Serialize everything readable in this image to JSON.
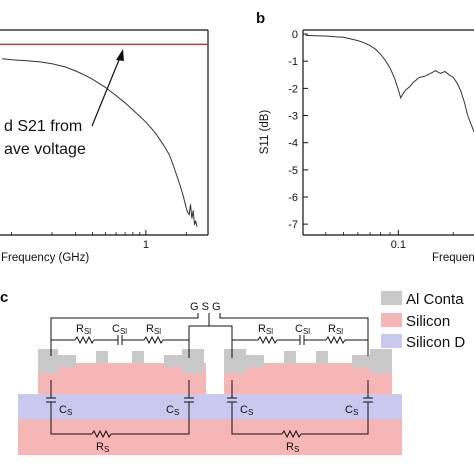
{
  "figure": {
    "panel_b": "b",
    "panel_c": "c"
  },
  "annotation": {
    "line1": "d S21 from",
    "line2": "ave voltage"
  },
  "chart_data": [
    {
      "type": "line",
      "panel": "a",
      "xlabel": "Frequency (GHz)",
      "xscale": "log",
      "x_ticks": [
        {
          "value": 1,
          "label": "1"
        }
      ],
      "xlim": [
        0.082,
        2.9
      ],
      "ylim": [
        0,
        1
      ],
      "grid": false,
      "series": [
        {
          "color": "#c0392b",
          "x": [
            0.08,
            2.9
          ],
          "y": [
            0.93,
            0.93
          ]
        },
        {
          "color": "#333333",
          "x": [
            0.085,
            0.1,
            0.13,
            0.16,
            0.2,
            0.25,
            0.3,
            0.35,
            0.4,
            0.5,
            0.6,
            0.7,
            0.8,
            0.9,
            1.0,
            1.1,
            1.2,
            1.35,
            1.5,
            1.6,
            1.7,
            1.8,
            1.9,
            2.0,
            2.05,
            2.1,
            2.15,
            2.2,
            2.25,
            2.3,
            2.35,
            2.4
          ],
          "y": [
            0.86,
            0.855,
            0.85,
            0.845,
            0.835,
            0.82,
            0.8,
            0.78,
            0.76,
            0.72,
            0.68,
            0.645,
            0.61,
            0.58,
            0.55,
            0.52,
            0.49,
            0.44,
            0.39,
            0.34,
            0.29,
            0.24,
            0.19,
            0.13,
            0.11,
            0.1,
            0.15,
            0.08,
            0.12,
            0.05,
            0.07,
            0.04
          ]
        }
      ]
    },
    {
      "type": "line",
      "panel": "b",
      "xlabel": "Frequency",
      "ylabel": "S11 (dB)",
      "xscale": "log",
      "x_ticks": [
        {
          "value": 0.1,
          "label": "0.1"
        }
      ],
      "y_ticks": [
        0,
        -1,
        -2,
        -3,
        -4,
        -5,
        -6,
        -7
      ],
      "y_tick_labels": [
        "0",
        "-1",
        "-2",
        "-3",
        "-4",
        "-5",
        "-6",
        "-7"
      ],
      "xlim": [
        0.03,
        0.26
      ],
      "ylim": [
        -7.4,
        0.15
      ],
      "grid": false,
      "series": [
        {
          "color": "#333333",
          "x": [
            0.031,
            0.035,
            0.04,
            0.045,
            0.05,
            0.055,
            0.06,
            0.065,
            0.07,
            0.075,
            0.08,
            0.085,
            0.09,
            0.095,
            0.1,
            0.103,
            0.106,
            0.11,
            0.115,
            0.12,
            0.13,
            0.14,
            0.15,
            0.16,
            0.17,
            0.18,
            0.19,
            0.2,
            0.21,
            0.22,
            0.23,
            0.24,
            0.26
          ],
          "y": [
            -0.05,
            -0.06,
            -0.07,
            -0.1,
            -0.12,
            -0.18,
            -0.24,
            -0.32,
            -0.42,
            -0.56,
            -0.75,
            -0.98,
            -1.25,
            -1.6,
            -2.05,
            -2.35,
            -2.2,
            -2.05,
            -1.95,
            -1.8,
            -1.6,
            -1.55,
            -1.45,
            -1.35,
            -1.45,
            -1.38,
            -1.5,
            -1.6,
            -1.8,
            -2.1,
            -2.5,
            -3.0,
            -3.6
          ]
        }
      ]
    }
  ],
  "circuit": {
    "probe_label": "G S G",
    "r_sl": "R",
    "r_sl_sub": "Sl",
    "c_sl": "C",
    "c_sl_sub": "Sl",
    "c_s": "C",
    "c_s_sub": "S",
    "r_s": "R",
    "r_s_sub": "S"
  },
  "legend": {
    "items": [
      {
        "label": "Al Conta",
        "color": "#c8c8c8"
      },
      {
        "label": "Silicon",
        "color": "#f6b6b6"
      },
      {
        "label": "Silicon D",
        "color": "#c9c9f0"
      }
    ]
  }
}
